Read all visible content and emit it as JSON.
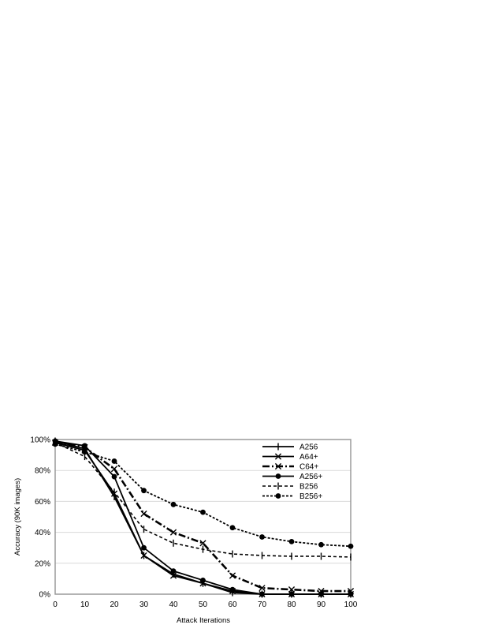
{
  "chart_data": {
    "type": "line",
    "title": "",
    "xlabel": "Attack Iterations",
    "ylabel": "Accuracy (90K images)",
    "x": [
      0,
      10,
      20,
      30,
      40,
      50,
      60,
      70,
      80,
      90,
      100
    ],
    "x_tick_labels": [
      "0",
      "10",
      "20",
      "30",
      "40",
      "50",
      "60",
      "70",
      "80",
      "90",
      "100"
    ],
    "ylim": [
      0,
      100
    ],
    "y_ticks": [
      0,
      20,
      40,
      60,
      80,
      100
    ],
    "y_tick_labels": [
      "0%",
      "20%",
      "40%",
      "60%",
      "80%",
      "100%"
    ],
    "grid": true,
    "legend_position": "top-right",
    "series": [
      {
        "name": "A256",
        "marker": "plus",
        "dash": "solid",
        "values": [
          99,
          94,
          63,
          25,
          13,
          7,
          1,
          0,
          0,
          0,
          0
        ]
      },
      {
        "name": "A64+",
        "marker": "x",
        "dash": "solid",
        "values": [
          98,
          93,
          65,
          25,
          12,
          7,
          2,
          0,
          0,
          0,
          0
        ]
      },
      {
        "name": "C64+",
        "marker": "x",
        "dash": "dashdot",
        "values": [
          98,
          95,
          81,
          52,
          40,
          33,
          12,
          4,
          3,
          2,
          2
        ]
      },
      {
        "name": "A256+",
        "marker": "circle",
        "dash": "solid",
        "values": [
          99,
          96,
          76,
          30,
          15,
          9,
          3,
          0,
          0,
          0,
          0
        ]
      },
      {
        "name": "B256",
        "marker": "plus",
        "dash": "dashed",
        "values": [
          98,
          89,
          66,
          42,
          33,
          29,
          26,
          25,
          24.5,
          24.5,
          24
        ]
      },
      {
        "name": "B256+",
        "marker": "circle",
        "dash": "dotted",
        "values": [
          97,
          92,
          86,
          67,
          58,
          53,
          43,
          37,
          34,
          32,
          31
        ]
      }
    ]
  }
}
